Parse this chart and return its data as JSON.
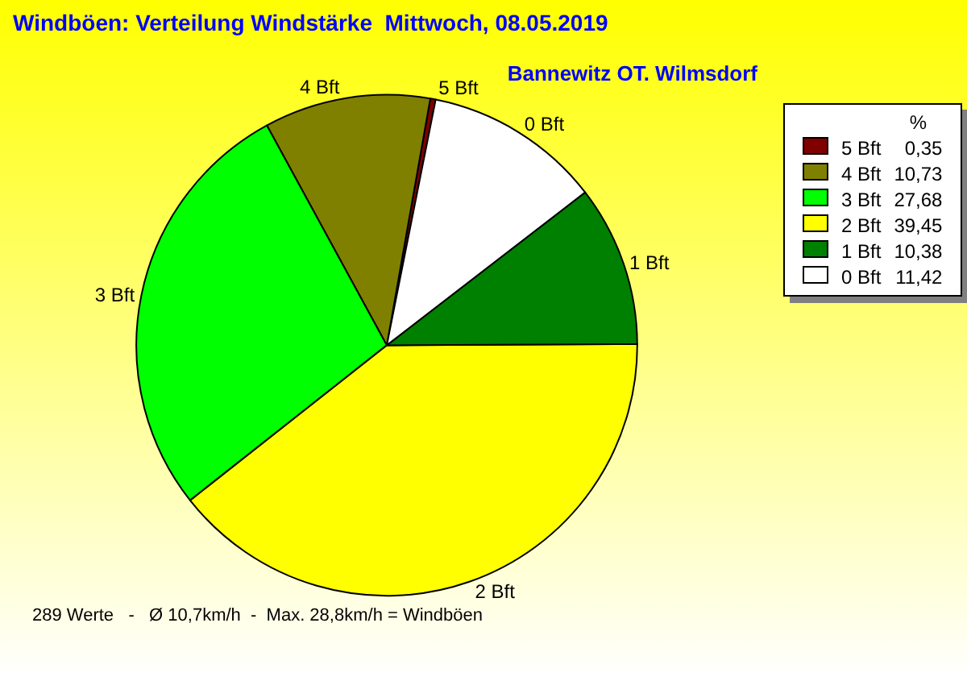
{
  "chart_data": {
    "type": "pie",
    "title": "Windböen: Verteilung Windstärke  Mittwoch, 08.05.2019",
    "subtitle": "Bannewitz OT. Wilmsdorf",
    "categories": [
      "5 Bft",
      "4 Bft",
      "3 Bft",
      "2 Bft",
      "1 Bft",
      "0 Bft"
    ],
    "values": [
      0.35,
      10.73,
      27.68,
      39.45,
      10.38,
      11.42
    ],
    "value_labels": [
      "0,35",
      "10,73",
      "27,68",
      "39,45",
      "10,38",
      "11,42"
    ],
    "colors": [
      "#800000",
      "#808000",
      "#00ff00",
      "#ffff00",
      "#008000",
      "#ffffff"
    ],
    "legend": "top right",
    "legend_title": "%",
    "annotations": [
      "289 Werte   -   Ø 10,7km/h  -  Max. 28,8km/h = Windböen"
    ]
  }
}
